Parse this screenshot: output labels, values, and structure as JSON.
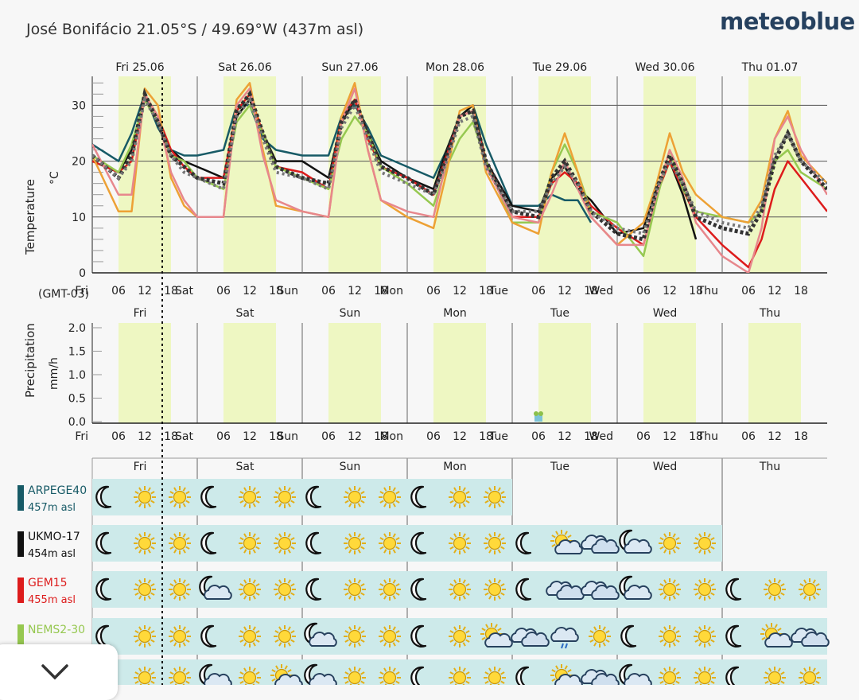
{
  "header": {
    "location": "José Bonifácio  21.05°S / 49.69°W (437m asl)",
    "brand": "meteoblue"
  },
  "day_labels_dated": [
    "Fri 25.06",
    "Sat 26.06",
    "Sun 27.06",
    "Mon 28.06",
    "Tue 29.06",
    "Wed 30.06",
    "Thu 01.07"
  ],
  "day_labels_short": [
    "Fri",
    "Sat",
    "Sun",
    "Mon",
    "Tue",
    "Wed",
    "Thu"
  ],
  "time_axis": {
    "timezone": "(GMT-03)",
    "hour_labels": [
      "06",
      "12",
      "18"
    ]
  },
  "colors": {
    "daylight": "#eef7c2",
    "ARPEGE40": "#175a66",
    "UKMO-17": "#111111",
    "GEM15": "#dd1c1c",
    "NEMS2-30": "#96c850",
    "orange": "#eda135",
    "pink": "#e7878c",
    "mean": "#555555",
    "row_bg": "#cdeaea"
  },
  "chart_data": [
    {
      "type": "line",
      "ylabel": "Temperature",
      "unit": "°C",
      "ylim": [
        0,
        35
      ],
      "yticks": [
        0,
        10,
        20,
        30
      ],
      "grid": true,
      "x_hours_from_fri_00": [
        0,
        6,
        9,
        12,
        15,
        18,
        21,
        24,
        30,
        33,
        36,
        39,
        42,
        48,
        54,
        57,
        60,
        63,
        66,
        72,
        78,
        81,
        84,
        87,
        90,
        96,
        102,
        105,
        108,
        111,
        114,
        120,
        126,
        129,
        132,
        135,
        138,
        144,
        150,
        153,
        156,
        159,
        162,
        168
      ],
      "series": [
        {
          "name": "ARPEGE40",
          "values": [
            23,
            20,
            25,
            32,
            26,
            22,
            21,
            21,
            22,
            30,
            30,
            24,
            22,
            21,
            21,
            28,
            30,
            26,
            21,
            19,
            17,
            22,
            28,
            30,
            23,
            12,
            12,
            14,
            13,
            13,
            9,
            null,
            null,
            null,
            null,
            null,
            null,
            null,
            null,
            null,
            null,
            null,
            null,
            null
          ]
        },
        {
          "name": "UKMO-17",
          "values": [
            20,
            18,
            22,
            31,
            27,
            22,
            20,
            19,
            17,
            28,
            31,
            25,
            20,
            20,
            17,
            27,
            31,
            25,
            20,
            17,
            15,
            22,
            28,
            30,
            20,
            12,
            11,
            17,
            19,
            15,
            13,
            7,
            8,
            15,
            20,
            14,
            6,
            null,
            null,
            null,
            null,
            null,
            null,
            null
          ]
        },
        {
          "name": "GEM15",
          "values": [
            20,
            18,
            20,
            32,
            28,
            22,
            19,
            17,
            17,
            29,
            32,
            25,
            19,
            18,
            15,
            28,
            31,
            24,
            19,
            17,
            14,
            21,
            28,
            29,
            20,
            10,
            10,
            16,
            18,
            16,
            12,
            8,
            5,
            14,
            20,
            15,
            10,
            5,
            1,
            6,
            15,
            20,
            17,
            11
          ]
        },
        {
          "name": "NEMS2-30",
          "values": [
            21,
            18,
            23,
            31,
            27,
            21,
            20,
            17,
            15,
            27,
            30,
            25,
            19,
            17,
            15,
            24,
            28,
            25,
            19,
            16,
            12,
            19,
            24,
            27,
            20,
            9,
            9,
            18,
            23,
            18,
            11,
            9,
            3,
            13,
            22,
            15,
            11,
            10,
            9,
            11,
            20,
            22,
            18,
            15
          ]
        },
        {
          "name": "",
          "values": [
            21,
            11,
            11,
            33,
            30,
            17,
            12,
            10,
            10,
            31,
            34,
            22,
            12,
            11,
            10,
            28,
            34,
            22,
            13,
            10,
            8,
            18,
            29,
            30,
            18,
            9,
            7,
            18,
            25,
            18,
            10,
            5,
            9,
            16,
            25,
            18,
            14,
            10,
            9,
            13,
            24,
            29,
            21,
            16
          ]
        },
        {
          "name": "",
          "values": [
            23,
            14,
            14,
            32,
            28,
            18,
            13,
            10,
            10,
            30,
            33,
            21,
            13,
            11,
            10,
            27,
            33,
            22,
            13,
            11,
            10,
            20,
            28,
            29,
            19,
            10,
            9,
            14,
            20,
            15,
            10,
            5,
            5,
            14,
            22,
            17,
            9,
            3,
            0,
            8,
            24,
            28,
            22,
            14
          ]
        },
        {
          "name": "",
          "values": [
            21,
            17,
            21,
            32,
            27,
            21,
            19,
            17,
            16,
            29,
            32,
            25,
            19,
            17,
            16,
            27,
            31,
            25,
            19,
            17,
            14,
            21,
            28,
            29,
            20,
            11,
            10,
            17,
            20,
            16,
            11,
            7,
            6,
            15,
            21,
            16,
            10,
            8,
            7,
            11,
            20,
            25,
            20,
            15
          ]
        },
        {
          "name": "",
          "values": [
            21,
            17,
            20,
            31,
            27,
            21,
            18,
            17,
            15,
            28,
            31,
            24,
            18,
            17,
            15,
            26,
            30,
            24,
            18,
            16,
            14,
            20,
            27,
            28,
            19,
            11,
            11,
            16,
            19,
            16,
            11,
            8,
            7,
            15,
            20,
            16,
            11,
            9,
            8,
            12,
            21,
            25,
            20,
            16
          ]
        }
      ]
    },
    {
      "type": "bar",
      "ylabel": "Precipitation",
      "unit": "mm/h",
      "ylim": [
        0,
        2.0
      ],
      "yticks": [
        "0.0",
        "0.5",
        "1.0",
        "1.5",
        "2.0"
      ],
      "x_hours_from_fri_00": [
        102
      ],
      "values": [
        0.17
      ]
    }
  ],
  "models": [
    {
      "name": "ARPEGE40",
      "elevation": "457m asl",
      "color": "#175a66",
      "icons": [
        "moon",
        "sun",
        "sun",
        "moon",
        "sun",
        "sun",
        "moon",
        "sun",
        "sun",
        "moon",
        "sun",
        "sun"
      ]
    },
    {
      "name": "UKMO-17",
      "elevation": "454m asl",
      "color": "#111111",
      "icons": [
        "moon",
        "sun",
        "sun",
        "moon",
        "sun",
        "sun",
        "moon",
        "sun",
        "sun",
        "moon",
        "sun",
        "sun",
        "moon",
        "sun-cloud",
        "clouds",
        "moon-cloud",
        "sun",
        "sun"
      ]
    },
    {
      "name": "GEM15",
      "elevation": "455m asl",
      "color": "#dd1c1c",
      "icons": [
        "moon",
        "sun",
        "sun",
        "moon-cloud",
        "sun",
        "sun",
        "moon",
        "sun",
        "sun",
        "moon",
        "sun",
        "sun",
        "moon",
        "clouds",
        "clouds",
        "moon-cloud",
        "sun",
        "sun",
        "moon",
        "sun",
        "sun"
      ]
    },
    {
      "name": "NEMS2-30",
      "elevation": "",
      "color": "#96c850",
      "icons": [
        "moon",
        "sun",
        "sun",
        "moon",
        "sun",
        "sun",
        "moon-cloud",
        "sun",
        "sun",
        "moon",
        "sun",
        "sun-cloud",
        "clouds",
        "rain",
        "sun",
        "moon",
        "sun",
        "sun",
        "moon",
        "sun-cloud",
        "clouds"
      ]
    },
    {
      "name": "",
      "elevation": "",
      "color": "#eda135",
      "icons": [
        "moon",
        "sun",
        "sun",
        "moon-cloud",
        "sun",
        "sun-cloud",
        "moon-cloud",
        "sun",
        "sun",
        "moon",
        "sun",
        "sun",
        "moon",
        "sun-cloud",
        "clouds",
        "moon-cloud",
        "sun",
        "sun",
        "moon",
        "sun",
        "sun"
      ]
    }
  ]
}
